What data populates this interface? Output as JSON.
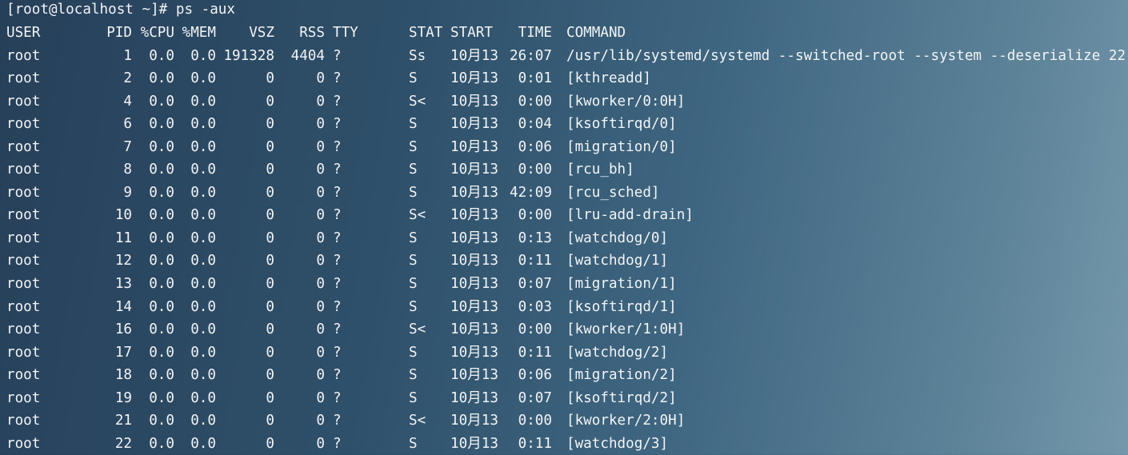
{
  "terminal": {
    "prompt": "[root@localhost ~]# ps -aux",
    "headers": {
      "user": "USER",
      "pid": "PID",
      "cpu": "%CPU",
      "mem": "%MEM",
      "vsz": "VSZ",
      "rss": "RSS",
      "tty": "TTY",
      "stat": "STAT",
      "start": "START",
      "time": "TIME",
      "cmd": "COMMAND"
    },
    "rows": [
      {
        "user": "root",
        "pid": "1",
        "cpu": "0.0",
        "mem": "0.0",
        "vsz": "191328",
        "rss": "4404",
        "tty": "?",
        "stat": "Ss",
        "start": "10月13",
        "time": "26:07",
        "cmd": "/usr/lib/systemd/systemd --switched-root --system --deserialize 22"
      },
      {
        "user": "root",
        "pid": "2",
        "cpu": "0.0",
        "mem": "0.0",
        "vsz": "0",
        "rss": "0",
        "tty": "?",
        "stat": "S",
        "start": "10月13",
        "time": "0:01",
        "cmd": "[kthreadd]"
      },
      {
        "user": "root",
        "pid": "4",
        "cpu": "0.0",
        "mem": "0.0",
        "vsz": "0",
        "rss": "0",
        "tty": "?",
        "stat": "S<",
        "start": "10月13",
        "time": "0:00",
        "cmd": "[kworker/0:0H]"
      },
      {
        "user": "root",
        "pid": "6",
        "cpu": "0.0",
        "mem": "0.0",
        "vsz": "0",
        "rss": "0",
        "tty": "?",
        "stat": "S",
        "start": "10月13",
        "time": "0:04",
        "cmd": "[ksoftirqd/0]"
      },
      {
        "user": "root",
        "pid": "7",
        "cpu": "0.0",
        "mem": "0.0",
        "vsz": "0",
        "rss": "0",
        "tty": "?",
        "stat": "S",
        "start": "10月13",
        "time": "0:06",
        "cmd": "[migration/0]"
      },
      {
        "user": "root",
        "pid": "8",
        "cpu": "0.0",
        "mem": "0.0",
        "vsz": "0",
        "rss": "0",
        "tty": "?",
        "stat": "S",
        "start": "10月13",
        "time": "0:00",
        "cmd": "[rcu_bh]"
      },
      {
        "user": "root",
        "pid": "9",
        "cpu": "0.0",
        "mem": "0.0",
        "vsz": "0",
        "rss": "0",
        "tty": "?",
        "stat": "S",
        "start": "10月13",
        "time": "42:09",
        "cmd": "[rcu_sched]"
      },
      {
        "user": "root",
        "pid": "10",
        "cpu": "0.0",
        "mem": "0.0",
        "vsz": "0",
        "rss": "0",
        "tty": "?",
        "stat": "S<",
        "start": "10月13",
        "time": "0:00",
        "cmd": "[lru-add-drain]"
      },
      {
        "user": "root",
        "pid": "11",
        "cpu": "0.0",
        "mem": "0.0",
        "vsz": "0",
        "rss": "0",
        "tty": "?",
        "stat": "S",
        "start": "10月13",
        "time": "0:13",
        "cmd": "[watchdog/0]"
      },
      {
        "user": "root",
        "pid": "12",
        "cpu": "0.0",
        "mem": "0.0",
        "vsz": "0",
        "rss": "0",
        "tty": "?",
        "stat": "S",
        "start": "10月13",
        "time": "0:11",
        "cmd": "[watchdog/1]"
      },
      {
        "user": "root",
        "pid": "13",
        "cpu": "0.0",
        "mem": "0.0",
        "vsz": "0",
        "rss": "0",
        "tty": "?",
        "stat": "S",
        "start": "10月13",
        "time": "0:07",
        "cmd": "[migration/1]"
      },
      {
        "user": "root",
        "pid": "14",
        "cpu": "0.0",
        "mem": "0.0",
        "vsz": "0",
        "rss": "0",
        "tty": "?",
        "stat": "S",
        "start": "10月13",
        "time": "0:03",
        "cmd": "[ksoftirqd/1]"
      },
      {
        "user": "root",
        "pid": "16",
        "cpu": "0.0",
        "mem": "0.0",
        "vsz": "0",
        "rss": "0",
        "tty": "?",
        "stat": "S<",
        "start": "10月13",
        "time": "0:00",
        "cmd": "[kworker/1:0H]"
      },
      {
        "user": "root",
        "pid": "17",
        "cpu": "0.0",
        "mem": "0.0",
        "vsz": "0",
        "rss": "0",
        "tty": "?",
        "stat": "S",
        "start": "10月13",
        "time": "0:11",
        "cmd": "[watchdog/2]"
      },
      {
        "user": "root",
        "pid": "18",
        "cpu": "0.0",
        "mem": "0.0",
        "vsz": "0",
        "rss": "0",
        "tty": "?",
        "stat": "S",
        "start": "10月13",
        "time": "0:06",
        "cmd": "[migration/2]"
      },
      {
        "user": "root",
        "pid": "19",
        "cpu": "0.0",
        "mem": "0.0",
        "vsz": "0",
        "rss": "0",
        "tty": "?",
        "stat": "S",
        "start": "10月13",
        "time": "0:07",
        "cmd": "[ksoftirqd/2]"
      },
      {
        "user": "root",
        "pid": "21",
        "cpu": "0.0",
        "mem": "0.0",
        "vsz": "0",
        "rss": "0",
        "tty": "?",
        "stat": "S<",
        "start": "10月13",
        "time": "0:00",
        "cmd": "[kworker/2:0H]"
      },
      {
        "user": "root",
        "pid": "22",
        "cpu": "0.0",
        "mem": "0.0",
        "vsz": "0",
        "rss": "0",
        "tty": "?",
        "stat": "S",
        "start": "10月13",
        "time": "0:11",
        "cmd": "[watchdog/3]"
      }
    ]
  }
}
